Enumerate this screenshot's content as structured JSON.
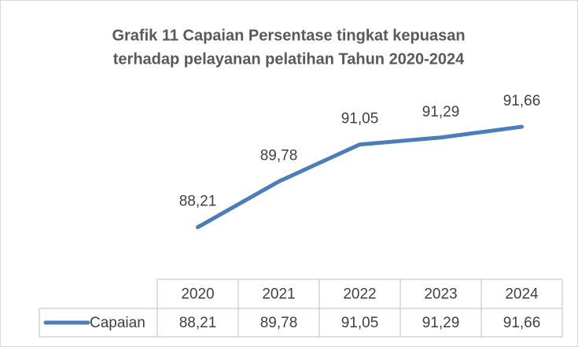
{
  "chart_data": {
    "type": "line",
    "title": [
      "Grafik 11 Capaian Persentase tingkat kepuasan",
      "terhadap pelayanan pelatihan Tahun 2020-2024"
    ],
    "categories": [
      "2020",
      "2021",
      "2022",
      "2023",
      "2024"
    ],
    "series": [
      {
        "name": "Capaian",
        "color": "#4a7ebb",
        "values": [
          88.21,
          89.78,
          91.05,
          91.29,
          91.66
        ],
        "value_labels": [
          "88,21",
          "89,78",
          "91,05",
          "91,29",
          "91,66"
        ]
      }
    ],
    "ylim": [
      86.5,
      92.5
    ]
  }
}
